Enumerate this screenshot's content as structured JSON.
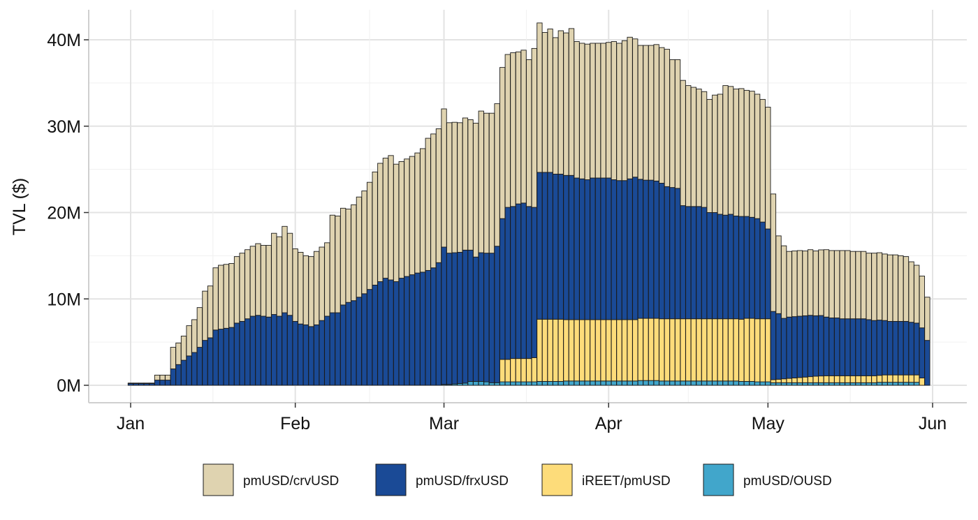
{
  "chart_data": {
    "type": "bar",
    "stacked": true,
    "title": "",
    "xlabel": "",
    "ylabel": "TVL ($)",
    "ylim": [
      0,
      42000000
    ],
    "grid": true,
    "legend_position": "bottom",
    "x_start": "2025-01-01",
    "x_end": "2025-05-31",
    "x_tick_labels": [
      {
        "date": "2025-01-01",
        "label": "Jan"
      },
      {
        "date": "2025-02-01",
        "label": "Feb"
      },
      {
        "date": "2025-03-01",
        "label": "Mar"
      },
      {
        "date": "2025-04-01",
        "label": "Apr"
      },
      {
        "date": "2025-05-01",
        "label": "May"
      },
      {
        "date": "2025-06-01",
        "label": "Jun"
      }
    ],
    "y_ticks": [
      {
        "value": 0,
        "label": "0M"
      },
      {
        "value": 10000000,
        "label": "10M"
      },
      {
        "value": 20000000,
        "label": "20M"
      },
      {
        "value": 30000000,
        "label": "30M"
      },
      {
        "value": 40000000,
        "label": "40M"
      }
    ],
    "series": [
      {
        "name": "pmUSD/crvUSD",
        "color": "#DFD3B0",
        "values": [
          0.06,
          0.06,
          0.06,
          0.06,
          0.06,
          0.58,
          0.58,
          0.58,
          2.5,
          2.5,
          2.8,
          3.5,
          3.8,
          4.6,
          5.7,
          6.0,
          7.2,
          7.4,
          7.4,
          7.4,
          7.7,
          7.9,
          8.0,
          8.1,
          8.3,
          8.2,
          8.3,
          9.4,
          9.2,
          10.0,
          9.5,
          8.4,
          8.3,
          8.0,
          8.1,
          8.5,
          8.5,
          8.5,
          11.3,
          11.2,
          11.2,
          10.8,
          11.1,
          11.6,
          11.9,
          12.4,
          13.1,
          13.7,
          13.9,
          14.4,
          13.6,
          13.5,
          13.6,
          13.7,
          13.9,
          14.3,
          15.3,
          15.5,
          15.5,
          16.0,
          15.1,
          15.1,
          15.0,
          15.3,
          15.1,
          15.5,
          16.4,
          16.2,
          16.2,
          16.5,
          17.5,
          17.7,
          17.8,
          17.6,
          17.7,
          17.0,
          18.4,
          17.3,
          16.2,
          16.6,
          15.8,
          16.6,
          16.5,
          17.0,
          15.8,
          15.7,
          15.7,
          15.6,
          15.6,
          15.6,
          15.7,
          16.0,
          15.9,
          16.2,
          16.4,
          16.0,
          15.5,
          15.6,
          15.6,
          15.8,
          15.7,
          15.9,
          14.8,
          14.9,
          14.5,
          14.0,
          13.8,
          13.6,
          13.4,
          13.1,
          13.6,
          13.9,
          15.0,
          14.8,
          14.7,
          14.8,
          14.6,
          14.6,
          14.4,
          14.2,
          14.1,
          13.6,
          9.0,
          8.4,
          7.6,
          7.6,
          7.6,
          7.5,
          7.6,
          7.5,
          7.6,
          7.8,
          7.8,
          7.8,
          7.9,
          7.9,
          7.8,
          7.8,
          7.8,
          7.7,
          7.8,
          7.8,
          7.7,
          7.7,
          7.7,
          7.6,
          7.5,
          7.0,
          6.7,
          6.0,
          5.0
        ]
      },
      {
        "name": "pmUSD/frxUSD",
        "color": "#1A4A96",
        "values": [
          0.2,
          0.2,
          0.2,
          0.2,
          0.2,
          0.6,
          0.6,
          0.6,
          1.9,
          2.4,
          2.9,
          3.4,
          3.8,
          4.4,
          5.2,
          5.5,
          6.4,
          6.5,
          6.6,
          6.7,
          7.2,
          7.4,
          7.7,
          8.0,
          8.1,
          8.0,
          7.9,
          8.2,
          8.0,
          8.4,
          8.1,
          7.4,
          7.1,
          7.0,
          6.8,
          7.0,
          7.5,
          8.0,
          8.4,
          8.4,
          9.3,
          9.6,
          9.8,
          10.2,
          10.6,
          11.1,
          11.6,
          12.0,
          12.4,
          12.2,
          12.0,
          12.4,
          12.6,
          12.8,
          13.0,
          13.1,
          13.3,
          13.6,
          14.2,
          15.9,
          15.2,
          15.2,
          15.2,
          15.4,
          15.2,
          14.4,
          14.9,
          14.9,
          15.0,
          15.8,
          16.3,
          17.6,
          17.6,
          17.9,
          18.0,
          17.6,
          17.4,
          17.0,
          17.0,
          17.0,
          16.8,
          16.8,
          16.7,
          16.7,
          16.4,
          16.3,
          16.2,
          16.4,
          16.4,
          16.4,
          16.4,
          16.2,
          16.1,
          16.1,
          16.3,
          16.5,
          16.1,
          16.0,
          16.0,
          15.9,
          15.7,
          15.3,
          15.2,
          15.1,
          13.1,
          13.0,
          13.0,
          13.0,
          12.9,
          12.3,
          12.3,
          12.1,
          12.0,
          12.1,
          11.9,
          11.9,
          11.8,
          11.7,
          11.6,
          11.2,
          10.4,
          7.9,
          7.6,
          7.0,
          7.1,
          7.1,
          7.1,
          7.1,
          7.1,
          7.0,
          7.0,
          6.8,
          6.7,
          6.7,
          6.6,
          6.6,
          6.6,
          6.6,
          6.6,
          6.5,
          6.4,
          6.4,
          6.3,
          6.2,
          6.2,
          6.2,
          6.2,
          6.1,
          6.0,
          5.8,
          5.2
        ]
      },
      {
        "name": "iREET/pmUSD",
        "color": "#FDDC7A",
        "values": [
          0,
          0,
          0,
          0,
          0,
          0,
          0,
          0,
          0,
          0,
          0,
          0,
          0,
          0,
          0,
          0,
          0,
          0,
          0,
          0,
          0,
          0,
          0,
          0,
          0,
          0,
          0,
          0,
          0,
          0,
          0,
          0,
          0,
          0,
          0,
          0,
          0,
          0,
          0,
          0,
          0,
          0,
          0,
          0,
          0,
          0,
          0,
          0,
          0,
          0,
          0,
          0,
          0,
          0,
          0,
          0,
          0,
          0,
          0,
          0,
          0,
          0,
          0,
          0,
          0,
          0,
          0,
          0,
          0,
          0,
          2.6,
          2.6,
          2.7,
          2.7,
          2.7,
          2.7,
          2.8,
          7.2,
          7.2,
          7.2,
          7.2,
          7.2,
          7.1,
          7.1,
          7.1,
          7.1,
          7.1,
          7.1,
          7.1,
          7.1,
          7.1,
          7.1,
          7.1,
          7.1,
          7.1,
          7.1,
          7.2,
          7.2,
          7.2,
          7.2,
          7.2,
          7.2,
          7.2,
          7.2,
          7.2,
          7.2,
          7.2,
          7.2,
          7.2,
          7.2,
          7.2,
          7.2,
          7.2,
          7.2,
          7.2,
          7.2,
          7.3,
          7.3,
          7.3,
          7.3,
          7.3,
          0.35,
          0.4,
          0.45,
          0.5,
          0.55,
          0.6,
          0.65,
          0.7,
          0.75,
          0.78,
          0.8,
          0.8,
          0.8,
          0.8,
          0.8,
          0.8,
          0.8,
          0.8,
          0.8,
          0.8,
          0.8,
          0.85,
          0.85,
          0.85,
          0.85,
          0.85,
          0.85,
          0.85,
          0.85
        ]
      },
      {
        "name": "pmUSD/OUSD",
        "color": "#41A6CB",
        "values": [
          0,
          0,
          0,
          0,
          0,
          0,
          0,
          0,
          0,
          0,
          0,
          0,
          0,
          0,
          0,
          0,
          0,
          0,
          0,
          0,
          0,
          0,
          0,
          0,
          0,
          0,
          0,
          0,
          0,
          0,
          0,
          0,
          0,
          0,
          0,
          0,
          0,
          0,
          0,
          0,
          0,
          0,
          0,
          0,
          0,
          0,
          0,
          0,
          0,
          0,
          0,
          0,
          0,
          0,
          0,
          0,
          0,
          0,
          0,
          0.1,
          0.1,
          0.15,
          0.2,
          0.25,
          0.45,
          0.45,
          0.45,
          0.4,
          0.3,
          0.3,
          0.4,
          0.4,
          0.4,
          0.4,
          0.4,
          0.4,
          0.4,
          0.45,
          0.45,
          0.45,
          0.45,
          0.45,
          0.5,
          0.5,
          0.5,
          0.5,
          0.5,
          0.5,
          0.5,
          0.5,
          0.5,
          0.5,
          0.5,
          0.5,
          0.5,
          0.5,
          0.55,
          0.55,
          0.55,
          0.55,
          0.5,
          0.5,
          0.5,
          0.5,
          0.5,
          0.5,
          0.5,
          0.5,
          0.5,
          0.5,
          0.5,
          0.5,
          0.5,
          0.5,
          0.5,
          0.45,
          0.45,
          0.45,
          0.4,
          0.4,
          0.4,
          0.3,
          0.3,
          0.3,
          0.3,
          0.3,
          0.3,
          0.3,
          0.3,
          0.3,
          0.3,
          0.3,
          0.3,
          0.3,
          0.3,
          0.3,
          0.3,
          0.3,
          0.3,
          0.3,
          0.3,
          0.35,
          0.35,
          0.35,
          0.35,
          0.35,
          0.35,
          0.35,
          0.35
        ]
      }
    ]
  }
}
